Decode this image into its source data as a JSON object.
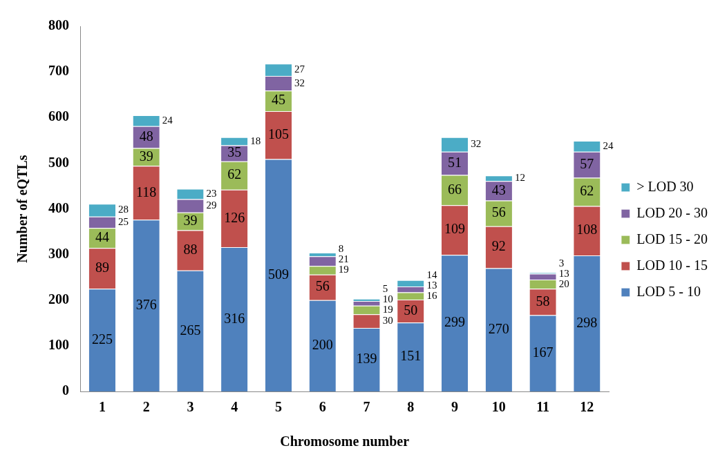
{
  "chart_data": {
    "type": "bar",
    "stacked": true,
    "xlabel": "Chromosome number",
    "ylabel": "Number of eQTLs",
    "categories": [
      "1",
      "2",
      "3",
      "4",
      "5",
      "6",
      "7",
      "8",
      "9",
      "10",
      "11",
      "12"
    ],
    "ylim": [
      0,
      800
    ],
    "yticks": [
      0,
      100,
      200,
      300,
      400,
      500,
      600,
      700,
      800
    ],
    "grid": false,
    "legend": "right",
    "data_labels": true,
    "series": [
      {
        "name": "LOD 5 - 10",
        "color": "#4f81bd",
        "values": [
          225,
          376,
          265,
          316,
          509,
          200,
          139,
          151,
          299,
          270,
          167,
          298
        ]
      },
      {
        "name": "LOD 10 - 15",
        "color": "#c0504d",
        "values": [
          89,
          118,
          88,
          126,
          105,
          56,
          30,
          50,
          109,
          92,
          58,
          108
        ]
      },
      {
        "name": "LOD 15 - 20",
        "color": "#9bbb59",
        "values": [
          44,
          39,
          39,
          62,
          45,
          19,
          19,
          16,
          66,
          56,
          20,
          62
        ]
      },
      {
        "name": "LOD 20 - 30",
        "color": "#8064a2",
        "values": [
          25,
          48,
          29,
          35,
          32,
          21,
          10,
          13,
          51,
          43,
          13,
          57
        ]
      },
      {
        "name": "> LOD 30",
        "color": "#4bacc6",
        "values": [
          28,
          24,
          23,
          18,
          27,
          8,
          5,
          14,
          32,
          12,
          3,
          24
        ]
      }
    ]
  }
}
